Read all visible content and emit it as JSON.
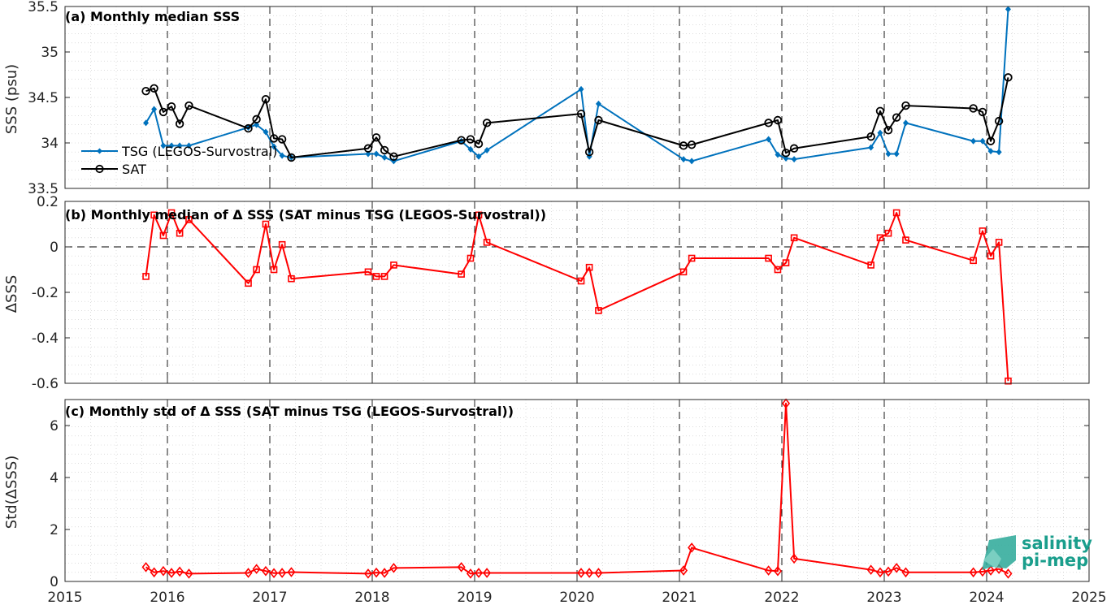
{
  "chart_data": [
    {
      "type": "line",
      "title": "(a) Monthly median SSS",
      "ylabel": "SSS (psu)",
      "xlim": [
        2015,
        2025
      ],
      "ylim": [
        33.5,
        35.5
      ],
      "yticks": [
        "33.5",
        "34",
        "34.5",
        "35",
        "35.5"
      ],
      "legend": "left",
      "grid": true,
      "series": [
        {
          "name": "TSG (LEGOS-Survostral)",
          "color": "#0072bd",
          "marker": "diamond-filled",
          "x": [
            2015.79,
            2015.87,
            2015.96,
            2016.04,
            2016.12,
            2016.21,
            2016.79,
            2016.87,
            2016.96,
            2017.04,
            2017.12,
            2017.21,
            2017.96,
            2018.04,
            2018.12,
            2018.21,
            2018.87,
            2018.96,
            2019.04,
            2019.12,
            2020.04,
            2020.12,
            2020.21,
            2021.04,
            2021.12,
            2021.87,
            2021.96,
            2022.04,
            2022.12,
            2022.87,
            2022.96,
            2023.04,
            2023.12,
            2023.21,
            2023.87,
            2023.96,
            2024.04,
            2024.12,
            2024.21
          ],
          "y": [
            34.22,
            34.37,
            33.97,
            33.97,
            33.97,
            33.97,
            34.17,
            34.2,
            34.12,
            33.96,
            33.86,
            33.84,
            33.88,
            33.88,
            33.84,
            33.8,
            34.02,
            33.93,
            33.85,
            33.92,
            34.59,
            33.85,
            34.43,
            33.82,
            33.8,
            34.04,
            33.87,
            33.83,
            33.82,
            33.95,
            34.11,
            33.88,
            33.88,
            34.22,
            34.02,
            34.02,
            33.91,
            33.9,
            35.47
          ]
        },
        {
          "name": "SAT",
          "color": "#000000",
          "marker": "circle-open",
          "x": [
            2015.79,
            2015.87,
            2015.96,
            2016.04,
            2016.12,
            2016.21,
            2016.79,
            2016.87,
            2016.96,
            2017.04,
            2017.12,
            2017.21,
            2017.96,
            2018.04,
            2018.12,
            2018.21,
            2018.87,
            2018.96,
            2019.04,
            2019.12,
            2020.04,
            2020.12,
            2020.21,
            2021.04,
            2021.12,
            2021.87,
            2021.96,
            2022.04,
            2022.12,
            2022.87,
            2022.96,
            2023.04,
            2023.12,
            2023.21,
            2023.87,
            2023.96,
            2024.04,
            2024.12,
            2024.21
          ],
          "y": [
            34.57,
            34.6,
            34.34,
            34.4,
            34.21,
            34.41,
            34.16,
            34.26,
            34.48,
            34.05,
            34.04,
            33.84,
            33.94,
            34.06,
            33.92,
            33.85,
            34.03,
            34.04,
            33.99,
            34.22,
            34.32,
            33.9,
            34.25,
            33.97,
            33.98,
            34.22,
            34.25,
            33.89,
            33.94,
            34.07,
            34.35,
            34.14,
            34.28,
            34.41,
            34.38,
            34.34,
            34.02,
            34.24,
            34.72
          ]
        }
      ]
    },
    {
      "type": "line",
      "title": "(b) Monthly median of Δ SSS (SAT minus TSG (LEGOS-Survostral))",
      "ylabel": "ΔSSS",
      "xlim": [
        2015,
        2025
      ],
      "ylim": [
        -0.6,
        0.2
      ],
      "yticks": [
        "-0.6",
        "-0.4",
        "-0.2",
        "0",
        "0.2"
      ],
      "grid": true,
      "zero_line": true,
      "series": [
        {
          "color": "#ff0000",
          "marker": "square-open",
          "x": [
            2015.79,
            2015.87,
            2015.96,
            2016.04,
            2016.12,
            2016.21,
            2016.79,
            2016.87,
            2016.96,
            2017.04,
            2017.12,
            2017.21,
            2017.96,
            2018.04,
            2018.12,
            2018.21,
            2018.87,
            2018.96,
            2019.04,
            2019.12,
            2020.04,
            2020.12,
            2020.21,
            2021.04,
            2021.12,
            2021.87,
            2021.96,
            2022.04,
            2022.12,
            2022.87,
            2022.96,
            2023.04,
            2023.12,
            2023.21,
            2023.87,
            2023.96,
            2024.04,
            2024.12,
            2024.21
          ],
          "y": [
            -0.13,
            0.14,
            0.05,
            0.15,
            0.06,
            0.12,
            -0.16,
            -0.1,
            0.1,
            -0.1,
            0.01,
            -0.14,
            -0.11,
            -0.13,
            -0.13,
            -0.08,
            -0.12,
            -0.05,
            0.14,
            0.02,
            -0.15,
            -0.09,
            -0.28,
            -0.11,
            -0.05,
            -0.05,
            -0.1,
            -0.07,
            0.04,
            -0.08,
            0.04,
            0.06,
            0.15,
            0.03,
            -0.06,
            0.07,
            -0.04,
            0.02,
            -0.59
          ]
        }
      ]
    },
    {
      "type": "line",
      "title": "(c) Monthly std of Δ SSS (SAT minus TSG (LEGOS-Survostral))",
      "ylabel": "Std(ΔSSS)",
      "xlabel": "",
      "xlim": [
        2015,
        2025
      ],
      "ylim": [
        0,
        7
      ],
      "yticks": [
        "0",
        "2",
        "4",
        "6"
      ],
      "xticks": [
        "2015",
        "2016",
        "2017",
        "2018",
        "2019",
        "2020",
        "2021",
        "2022",
        "2023",
        "2024",
        "2025"
      ],
      "grid": true,
      "series": [
        {
          "color": "#ff0000",
          "marker": "diamond-open",
          "x": [
            2015.79,
            2015.87,
            2015.96,
            2016.04,
            2016.12,
            2016.21,
            2016.79,
            2016.87,
            2016.96,
            2017.04,
            2017.12,
            2017.21,
            2017.96,
            2018.04,
            2018.12,
            2018.21,
            2018.87,
            2018.96,
            2019.04,
            2019.12,
            2020.04,
            2020.12,
            2020.21,
            2021.04,
            2021.12,
            2021.87,
            2021.96,
            2022.04,
            2022.12,
            2022.87,
            2022.96,
            2023.04,
            2023.12,
            2023.21,
            2023.87,
            2023.96,
            2024.04,
            2024.12,
            2024.21
          ],
          "y": [
            0.55,
            0.35,
            0.4,
            0.33,
            0.38,
            0.3,
            0.33,
            0.48,
            0.4,
            0.32,
            0.33,
            0.36,
            0.3,
            0.34,
            0.33,
            0.52,
            0.55,
            0.3,
            0.33,
            0.33,
            0.33,
            0.33,
            0.33,
            0.42,
            1.3,
            0.42,
            0.4,
            6.85,
            0.88,
            0.45,
            0.35,
            0.38,
            0.52,
            0.35,
            0.35,
            0.38,
            0.42,
            0.48,
            0.3
          ]
        }
      ]
    }
  ],
  "logo": {
    "line1": "salinity",
    "line2": "pi-mep"
  }
}
